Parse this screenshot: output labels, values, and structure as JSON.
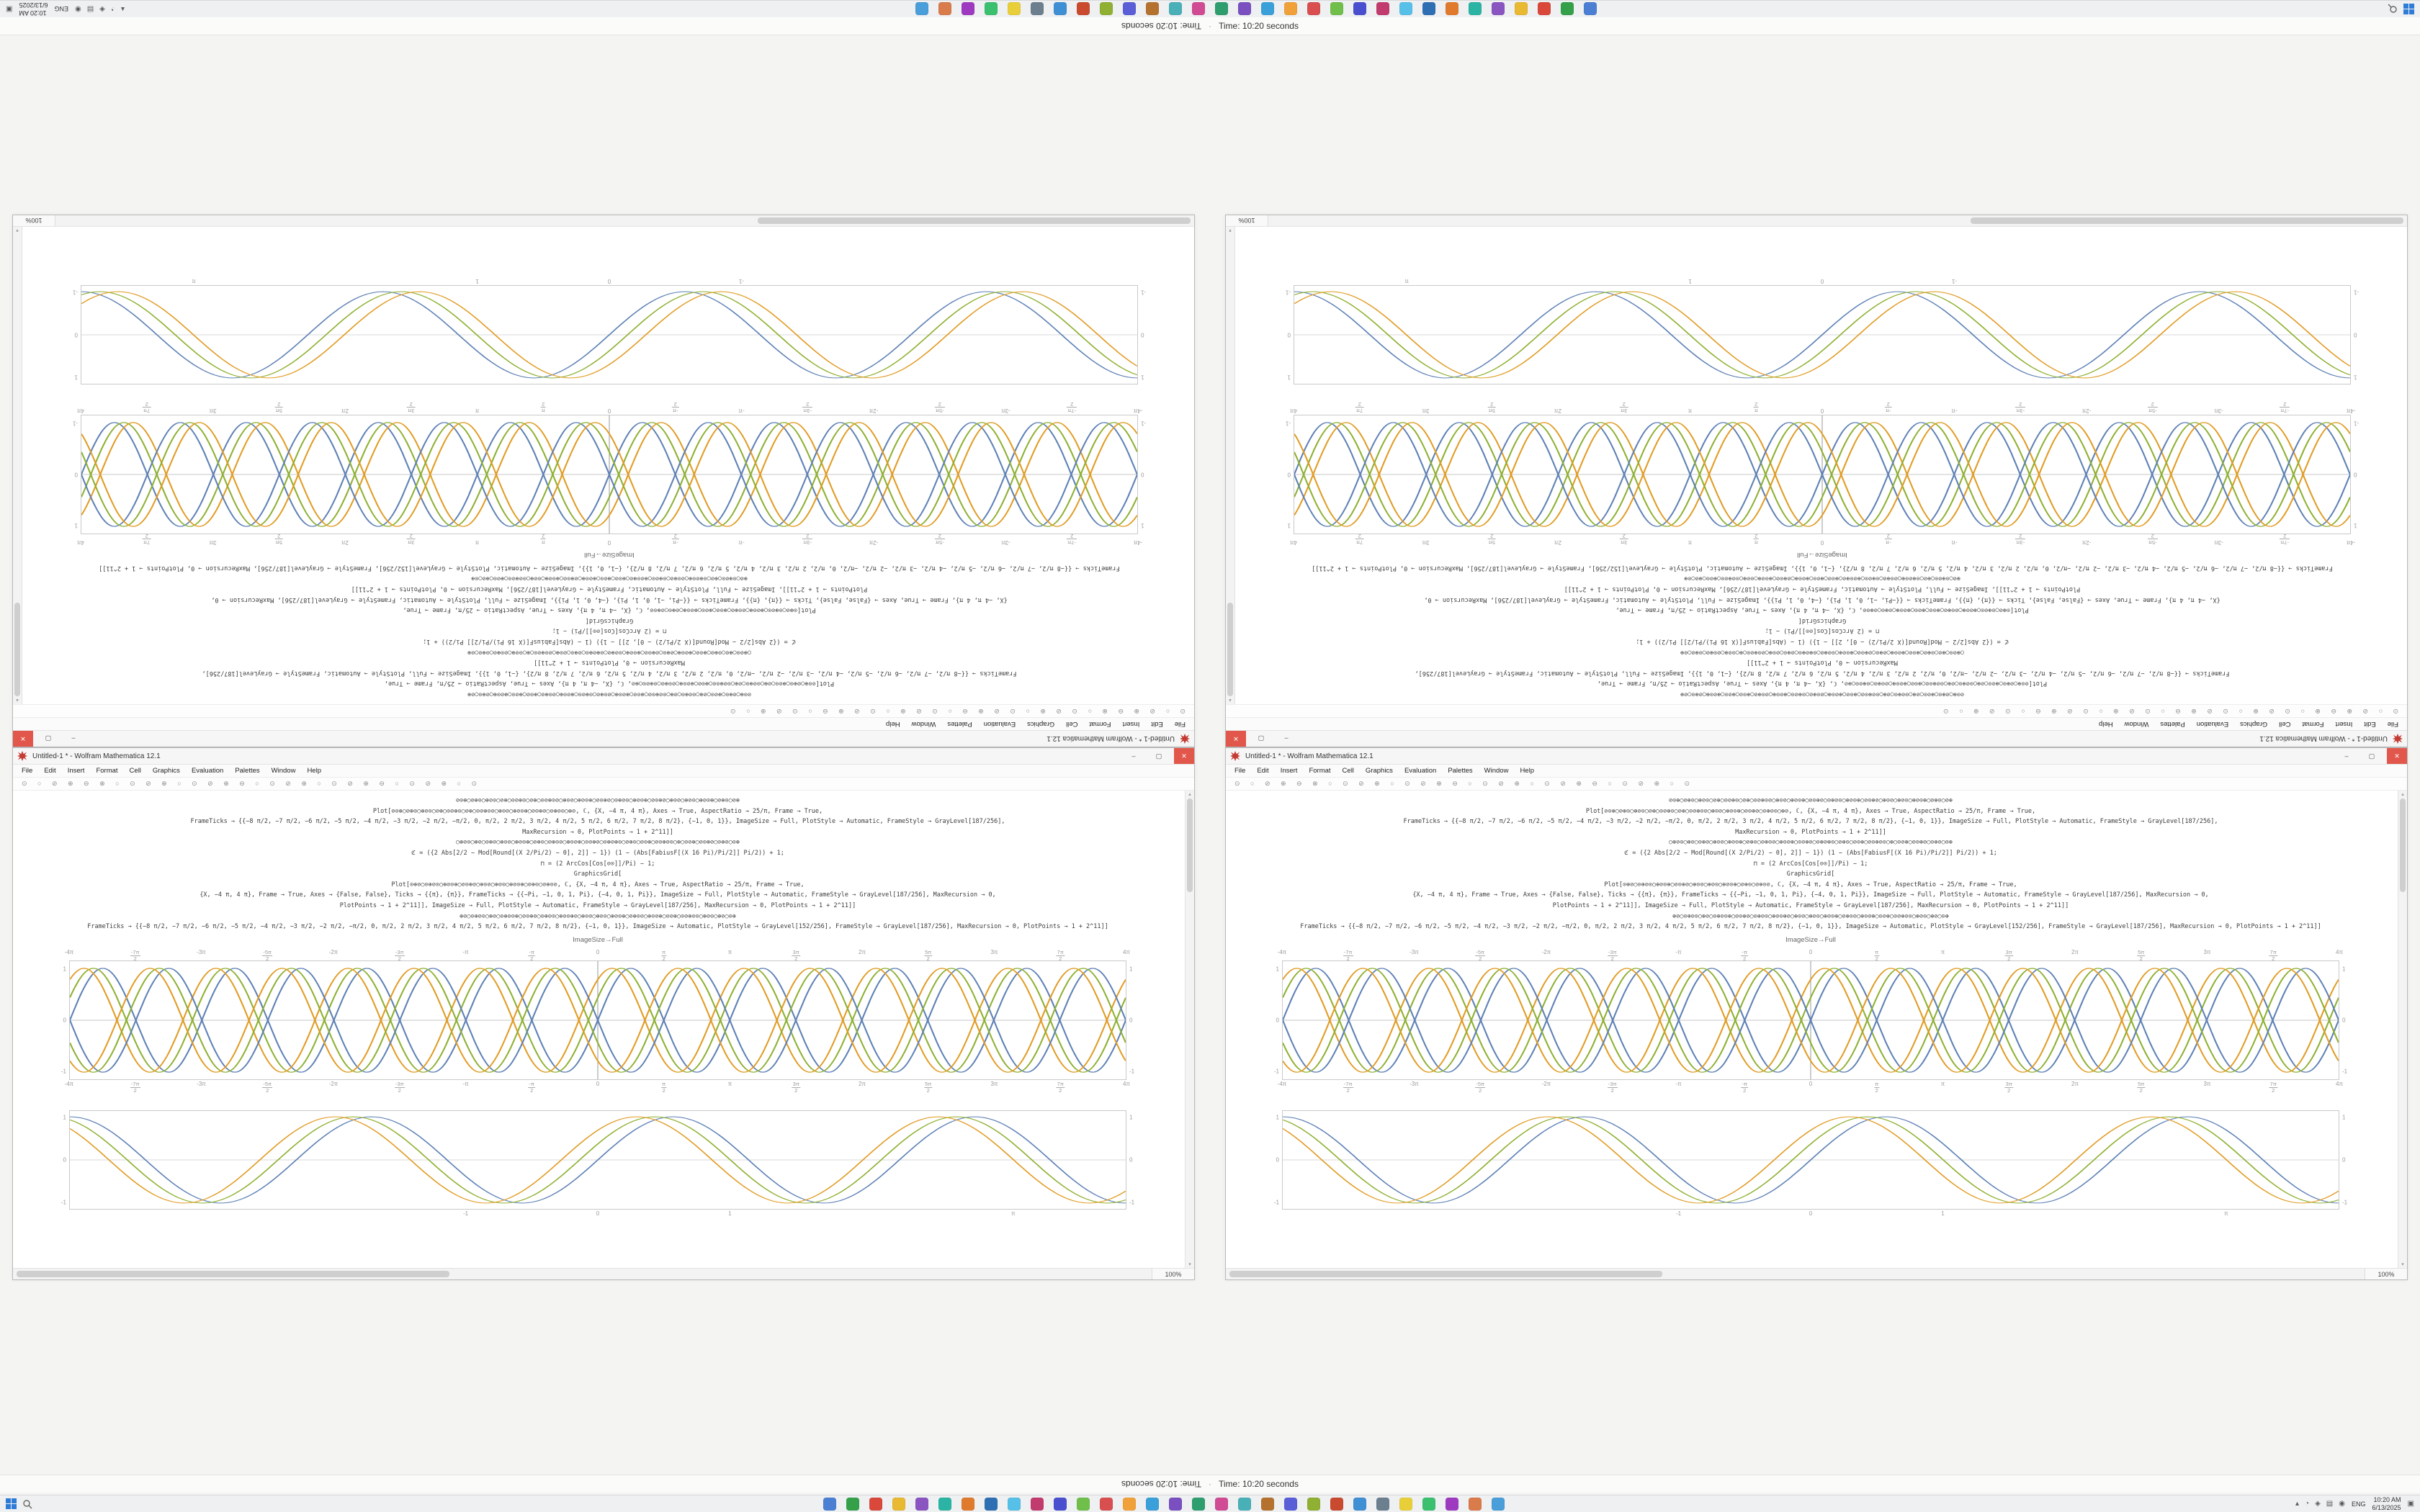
{
  "osd": {
    "timer_text": "Time: 10:20 seconds",
    "separator": "·"
  },
  "taskbar": {
    "lang": "ENG",
    "clock_time": "10:20 AM",
    "clock_date": "6/13/2025",
    "app_icon_colors": [
      "#4a7fd4",
      "#35a04a",
      "#d9483b",
      "#e8b931",
      "#8a55c0",
      "#2bb3a3",
      "#e07b2e",
      "#2e6fb3",
      "#57c0e8",
      "#c23b6e",
      "#4a4fd0",
      "#6fbf4a",
      "#d94f4f",
      "#f0a13a",
      "#3aa0d9",
      "#7a4fc0",
      "#2f9e6e",
      "#d04a94",
      "#4ab0b8",
      "#b5722e",
      "#5a5fd8",
      "#8fb032",
      "#c94a2e",
      "#3f8fd4",
      "#6b7f8f",
      "#e8cf3a",
      "#3ac06e",
      "#9e3ac0",
      "#d97b4a",
      "#4a9ed9"
    ],
    "tray_icons": [
      {
        "name": "tray-expand-icon",
        "glyph": "▴"
      },
      {
        "name": "cloud-sync-icon",
        "glyph": "◔"
      },
      {
        "name": "shield-icon",
        "glyph": "◈"
      },
      {
        "name": "network-icon",
        "glyph": "▤"
      },
      {
        "name": "volume-icon",
        "glyph": "◉"
      }
    ]
  },
  "window": {
    "title": "Untitled-1 * - Wolfram Mathematica 12.1",
    "accent_color": "#c33b32",
    "controls": {
      "min": "–",
      "max": "▢",
      "close": "✕"
    },
    "menus": [
      "File",
      "Edit",
      "Insert",
      "Format",
      "Cell",
      "Graphics",
      "Evaluation",
      "Palettes",
      "Window",
      "Help"
    ],
    "toolbar_glyphs": "⊙ ○ ⊘ ⊕ ⊖ ⊗ ○ ⊙ ⊘ ⊕ ○ ⊙ ⊘ ⊕ ⊖ ○ ⊙ ⊘ ⊕ ○ ⊙ ⊘ ⊕ ⊖ ○ ⊙ ⊘ ⊕ ○ ⊙",
    "magnification": "100%",
    "caption": "ImageSize→Full",
    "scrollbar": {
      "up": "▴",
      "down": "▾",
      "left": "◂",
      "right": "▸"
    },
    "code_lines": [
      "⊘⊙⊕○⊘⊕⊙○⊕⊘⊙○⊘⊕○⊙⊘⊕⊙○⊘⊕○⊙⊘⊕⊙⊘○⊕⊙⊘○⊕⊘⊙⊕○⊘⊙⊕⊘○⊙⊕⊘⊙○⊕⊘⊙⊕○⊘⊙⊕⊘○⊕⊙⊘○⊕⊘⊙○⊕⊘⊙⊕○⊘⊕⊙○⊘⊕",
      "Plot[⊘⊙⊕○⊘⊕⊙○⊕⊘⊙○⊘⊕○⊙⊘⊕⊙○⊘⊕○⊙⊘⊕⊙⊘○⊕⊙⊘○⊕⊘⊙⊕○⊘⊙⊕⊘○⊙⊕⊘⊙○⊕⊘, ℂ, {X, −4 π, 4 π}, Axes → True, AspectRatio → 25/π, Frame → True,",
      "FrameTicks → {{−8 π/2, −7 π/2, −6 π/2, −5 π/2, −4 π/2, −3 π/2, −2 π/2, −π/2, 0, π/2, 2 π/2, 3 π/2, 4 π/2, 5 π/2, 6 π/2, 7 π/2, 8 π/2}, {−1, 0, 1}}, ImageSize → Full, PlotStyle → Automatic, FrameStyle → GrayLevel[187/256],",
      "MaxRecursion → 0, PlotPoints → 1 + 2^11]]",
      "○⊕⊘⊙○⊕⊘○⊙⊕⊘○⊕⊙⊘○⊕⊘⊙⊕○⊘⊕⊙○⊘⊕⊙⊘○⊕⊙⊘⊕○⊙⊘⊕⊘○⊙⊕⊘⊕⊙○⊘⊕⊙○⊘⊙⊕○⊘⊙⊕⊘⊙○⊕○⊙⊘⊕○⊘⊙⊕⊘○⊙⊕⊘○⊙⊕",
      "ℭ = ({2 Abs[2/2 − Mod[Round[(X 2/Pi/2) − 0], 2]] − 1}) (1 − (Abs[FabiusF[(X 16 Pi)/Pi/2]] Pi/2)) + 1;",
      "⊓ = (2 ArcCos[Cos[⊘⊙]]/Pi) − 1;",
      "GraphicsGrid[",
      "Plot[⊙⊕⊘○⊙⊕⊘⊙○⊕⊘⊙⊕○⊘⊙⊕⊘○⊕⊙⊘○⊕⊘⊙○⊕⊘⊙⊕○⊘⊕⊙○⊘⊕⊙⊘, ℂ, {X, −4 π, 4 π}, Axes → True, AspectRatio → 25/π, Frame → True,",
      "{X, −4 π, 4 π}, Frame → True, Axes → {False, False}, Ticks → {{π}, {π}}, FrameTicks → {{−Pi, −1, 0, 1, Pi}, {−4, 0, 1, Pi}}, ImageSize → Full, PlotStyle → Automatic, FrameStyle → GrayLevel[187/256], MaxRecursion → 0,",
      "PlotPoints → 1 + 2^11]], ImageSize → Full, PlotStyle → Automatic, FrameStyle → GrayLevel[187/256], MaxRecursion → 0, PlotPoints → 1 + 2^11]]",
      "⊕⊘○⊙⊕⊘⊙○⊕⊘○⊙⊕⊘⊙⊕○⊘⊙⊕⊘○⊙⊕⊘⊙○⊕⊘⊙⊕⊘○⊕⊙⊘○⊕⊘⊙○⊕⊘⊙⊕○⊘⊕⊙⊘○⊕⊙⊘⊕○⊙⊘⊕○⊙⊘⊕⊘⊙○⊕⊘⊙○⊕⊘○⊙⊕",
      "FrameTicks → {{−8 π/2, −7 π/2, −6 π/2, −5 π/2, −4 π/2, −3 π/2, −2 π/2, −π/2, 0, π/2, 2 π/2, 3 π/2, 4 π/2, 5 π/2, 6 π/2, 7 π/2, 8 π/2}, {−1, 0, 1}}, ImageSize → Automatic, PlotStyle → GrayLevel[152/256], FrameStyle → GrayLevel[187/256], MaxRecursion → 0, PlotPoints → 1 + 2^11]]"
    ],
    "plots": {
      "dense": {
        "type": "line",
        "x_range": [
          -12.566,
          12.566
        ],
        "x_ticks": [
          "-4π",
          "-7π/2",
          "-3π",
          "-5π/2",
          "-2π",
          "-3π/2",
          "-π",
          "-π/2",
          "0",
          "π/2",
          "π",
          "3π/2",
          "2π",
          "5π/2",
          "3π",
          "7π/2",
          "4π"
        ],
        "y_ticks": [
          "1",
          "0",
          "-1"
        ],
        "axes": true,
        "curves": [
          {
            "color": "#5e81b5",
            "freq": 2,
            "phase": 0.0,
            "amp": 0.88
          },
          {
            "color": "#8fb032",
            "freq": 2,
            "phase": 0.45,
            "amp": 0.88
          },
          {
            "color": "#e19c24",
            "freq": 2,
            "phase": 0.9,
            "amp": 0.88
          },
          {
            "color": "#5e81b5",
            "freq": 2,
            "phase": 3.14,
            "amp": 0.88
          },
          {
            "color": "#8fb032",
            "freq": 2,
            "phase": 3.59,
            "amp": 0.88
          },
          {
            "color": "#e19c24",
            "freq": 2,
            "phase": 4.04,
            "amp": 0.88
          }
        ]
      },
      "smooth": {
        "type": "line",
        "x_range": [
          -4,
          4
        ],
        "x_ticks_pos": [
          {
            "label": "-1",
            "pos": 0.375
          },
          {
            "label": "0",
            "pos": 0.5
          },
          {
            "label": "1",
            "pos": 0.625
          },
          {
            "label": "π",
            "pos": 0.893
          }
        ],
        "y_ticks": [
          "1",
          "0",
          "-1"
        ],
        "axes": false,
        "curves": [
          {
            "color": "#5e81b5",
            "freq": 2.75,
            "phase": 0.0,
            "amp": 0.88
          },
          {
            "color": "#8fb032",
            "freq": 2.75,
            "phase": 0.38,
            "amp": 0.88
          },
          {
            "color": "#e19c24",
            "freq": 2.75,
            "phase": 0.76,
            "amp": 0.88
          }
        ]
      }
    }
  }
}
